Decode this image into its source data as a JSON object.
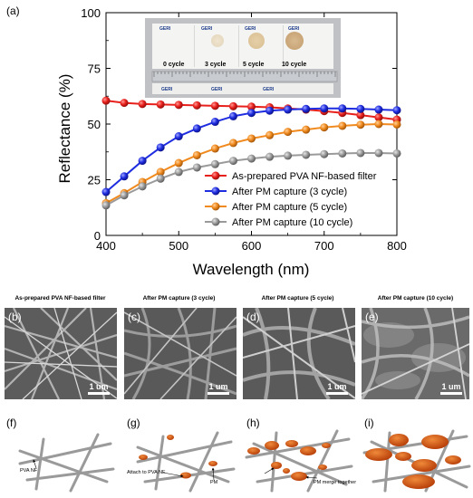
{
  "panel_labels": {
    "a": "(a)",
    "b": "(b)",
    "c": "(c)",
    "d": "(d)",
    "e": "(e)",
    "f": "(f)",
    "g": "(g)",
    "h": "(h)",
    "i": "(i)"
  },
  "chart_data": {
    "type": "line",
    "xlabel": "Wavelength (nm)",
    "ylabel": "Reflectance (%)",
    "xlim": [
      400,
      800
    ],
    "ylim": [
      0,
      100
    ],
    "xticks": [
      400,
      500,
      600,
      700,
      800
    ],
    "yticks": [
      0,
      25,
      50,
      75,
      100
    ],
    "legend_position": "bottom-right",
    "x": [
      400,
      425,
      450,
      475,
      500,
      525,
      550,
      575,
      600,
      625,
      650,
      675,
      700,
      725,
      750,
      775,
      800
    ],
    "series": [
      {
        "name": "As-prepared PVA NF-based filter",
        "color": "#e8201c",
        "values": [
          60.5,
          59.5,
          59.0,
          58.8,
          58.6,
          58.4,
          58.2,
          58.0,
          57.8,
          57.5,
          57.0,
          56.5,
          55.8,
          55.0,
          54.0,
          53.0,
          52.0
        ]
      },
      {
        "name": "After PM capture (3 cycle)",
        "color": "#1f2de0",
        "values": [
          19.5,
          26.5,
          33.5,
          39.5,
          44.5,
          48.0,
          51.0,
          53.5,
          55.0,
          56.0,
          56.5,
          56.8,
          57.0,
          57.0,
          56.8,
          56.5,
          56.2
        ]
      },
      {
        "name": "After PM capture (5 cycle)",
        "color": "#f08a1e",
        "values": [
          14.5,
          19.0,
          24.0,
          28.5,
          32.5,
          36.0,
          39.0,
          41.5,
          43.5,
          45.0,
          46.5,
          47.5,
          48.5,
          49.2,
          49.7,
          50.0,
          49.8
        ]
      },
      {
        "name": "After PM capture (10 cycle)",
        "color": "#9a9a9a",
        "values": [
          13.5,
          18.0,
          22.0,
          25.5,
          28.5,
          30.5,
          32.0,
          33.5,
          34.5,
          35.3,
          35.8,
          36.2,
          36.5,
          36.8,
          37.0,
          37.0,
          36.8
        ]
      }
    ]
  },
  "inset_photo": {
    "cycle_labels": [
      "0 cycle",
      "3 cycle",
      "5 cycle",
      "10 cycle"
    ],
    "logo_text": "GERI"
  },
  "sem_panels": [
    {
      "title": "As-prepared PVA NF-based filter",
      "scale": "1 um"
    },
    {
      "title": "After PM capture (3 cycle)",
      "scale": "1 um"
    },
    {
      "title": "After PM capture (5 cycle)",
      "scale": "1 um"
    },
    {
      "title": "After PM capture (10 cycle)",
      "scale": "1 um"
    }
  ],
  "schematic_annotations": {
    "pva_nf": "PVA NF",
    "attach": "Attach to PVA NF",
    "pm": "PM",
    "merge": "PM merge together"
  }
}
